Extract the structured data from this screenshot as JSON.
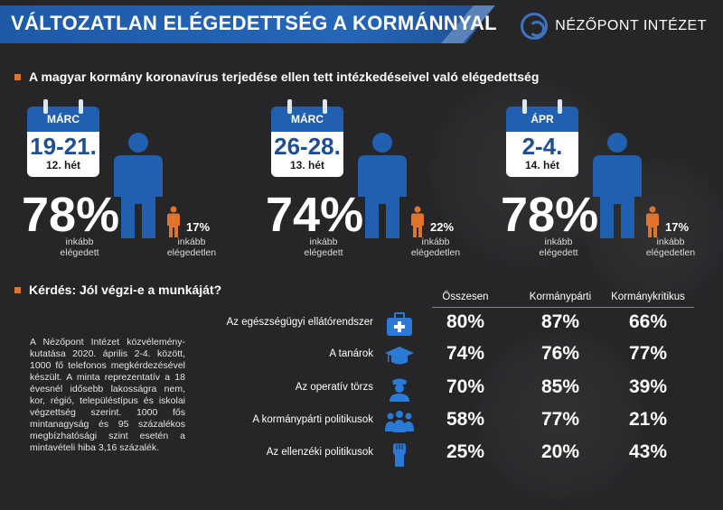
{
  "header": {
    "title": "VÁLTOZATLAN ELÉGEDETTSÉG A KORMÁNNYAL",
    "brand": "NÉZŐPONT INTÉZET"
  },
  "section1": {
    "title": "A magyar kormány koronavírus terjedése ellen tett intézkedéseivel való elégedettség"
  },
  "weeks": [
    {
      "month": "MÁRC",
      "days": "19-21.",
      "week": "12. hét",
      "satisfied_pct": "78%",
      "satisfied_label": "inkább elégedett",
      "dissatisfied_pct": "17%",
      "dissatisfied_label": "inkább elégedetlen"
    },
    {
      "month": "MÁRC",
      "days": "26-28.",
      "week": "13. hét",
      "satisfied_pct": "74%",
      "satisfied_label": "inkább elégedett",
      "dissatisfied_pct": "22%",
      "dissatisfied_label": "inkább elégedetlen"
    },
    {
      "month": "ÁPR",
      "days": "2-4.",
      "week": "14. hét",
      "satisfied_pct": "78%",
      "satisfied_label": "inkább elégedett",
      "dissatisfied_pct": "17%",
      "dissatisfied_label": "inkább elégedetlen"
    }
  ],
  "section2": {
    "title": "Kérdés: Jól végzi-e a munkáját?"
  },
  "table": {
    "columns": [
      "Összesen",
      "Kormánypárti",
      "Kormánykritikus"
    ],
    "rows": [
      {
        "label": "Az egészségügyi ellátórendszer",
        "icon": "medical-kit-icon",
        "values": [
          "80%",
          "87%",
          "66%"
        ]
      },
      {
        "label": "A tanárok",
        "icon": "graduation-cap-icon",
        "values": [
          "74%",
          "76%",
          "77%"
        ]
      },
      {
        "label": "Az operatív törzs",
        "icon": "officer-icon",
        "values": [
          "70%",
          "85%",
          "39%"
        ]
      },
      {
        "label": "A kormánypárti politikusok",
        "icon": "politicians-group-icon",
        "values": [
          "58%",
          "77%",
          "21%"
        ]
      },
      {
        "label": "Az ellenzéki politikusok",
        "icon": "raised-fist-icon",
        "values": [
          "25%",
          "20%",
          "43%"
        ]
      }
    ]
  },
  "note": "A Nézőpont Intézet közvélemény-kutatása 2020. április 2-4. között, 1000 fő telefonos megkérdezésével készült. A minta reprezentatív a 18 évesnél idősebb lakosságra nem, kor, régió, településtípus és iskolai végzettség szerint. 1000 fős mintanagyság és 95 százalékos megbízhatósági szint esetén a mintavételi hiba 3,16 százalék.",
  "colors": {
    "background": "#262629",
    "accent_blue": "#2160b0",
    "accent_orange": "#e0742b"
  }
}
